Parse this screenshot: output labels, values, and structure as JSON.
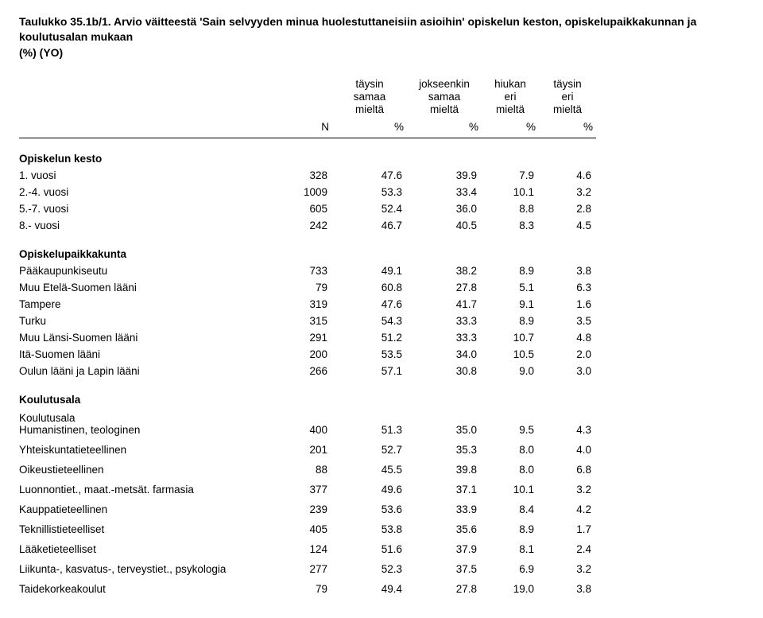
{
  "title_part1": "Taulukko 35.1b/1. Arvio väitteestä 'Sain selvyyden minua huolestuttaneisiin asioihin' opiskelun keston, opiskelupaikkakunnan ja koulutusalan mukaan",
  "title_part2": "(%) (YO)",
  "headers": {
    "c1": [
      "täysin",
      "samaa",
      "mieltä"
    ],
    "c2": [
      "jokseenkin",
      "samaa",
      "mieltä"
    ],
    "c3": [
      "hiukan",
      "eri",
      "mieltä"
    ],
    "c4": [
      "täysin",
      "eri",
      "mieltä"
    ],
    "n": "N",
    "pct": "%"
  },
  "sections": {
    "s1": {
      "label": "Opiskelun kesto",
      "rows": [
        {
          "label": "1. vuosi",
          "n": "328",
          "v": [
            "47.6",
            "39.9",
            "7.9",
            "4.6"
          ]
        },
        {
          "label": "2.-4. vuosi",
          "n": "1009",
          "v": [
            "53.3",
            "33.4",
            "10.1",
            "3.2"
          ]
        },
        {
          "label": "5.-7. vuosi",
          "n": "605",
          "v": [
            "52.4",
            "36.0",
            "8.8",
            "2.8"
          ]
        },
        {
          "label": "8.- vuosi",
          "n": "242",
          "v": [
            "46.7",
            "40.5",
            "8.3",
            "4.5"
          ]
        }
      ]
    },
    "s2": {
      "label": "Opiskelupaikkakunta",
      "rows": [
        {
          "label": "Pääkaupunkiseutu",
          "n": "733",
          "v": [
            "49.1",
            "38.2",
            "8.9",
            "3.8"
          ]
        },
        {
          "label": "Muu Etelä-Suomen lääni",
          "n": "79",
          "v": [
            "60.8",
            "27.8",
            "5.1",
            "6.3"
          ]
        },
        {
          "label": "Tampere",
          "n": "319",
          "v": [
            "47.6",
            "41.7",
            "9.1",
            "1.6"
          ]
        },
        {
          "label": "Turku",
          "n": "315",
          "v": [
            "54.3",
            "33.3",
            "8.9",
            "3.5"
          ]
        },
        {
          "label": "Muu Länsi-Suomen lääni",
          "n": "291",
          "v": [
            "51.2",
            "33.3",
            "10.7",
            "4.8"
          ]
        },
        {
          "label": "Itä-Suomen lääni",
          "n": "200",
          "v": [
            "53.5",
            "34.0",
            "10.5",
            "2.0"
          ]
        },
        {
          "label": "Oulun lääni ja Lapin lääni",
          "n": "266",
          "v": [
            "57.1",
            "30.8",
            "9.0",
            "3.0"
          ]
        }
      ]
    },
    "s3": {
      "label": "Koulutusala",
      "rows": [
        {
          "label": "Koulutusala",
          "sub": "Humanistinen, teologinen",
          "n": "400",
          "v": [
            "51.3",
            "35.0",
            "9.5",
            "4.3"
          ]
        },
        {
          "label": "Yhteiskuntatieteellinen",
          "n": "201",
          "v": [
            "52.7",
            "35.3",
            "8.0",
            "4.0"
          ]
        },
        {
          "label": "Oikeustieteellinen",
          "n": "88",
          "v": [
            "45.5",
            "39.8",
            "8.0",
            "6.8"
          ]
        },
        {
          "label": "Luonnontiet., maat.-metsät. farmasia",
          "n": "377",
          "v": [
            "49.6",
            "37.1",
            "10.1",
            "3.2"
          ]
        },
        {
          "label": "Kauppatieteellinen",
          "n": "239",
          "v": [
            "53.6",
            "33.9",
            "8.4",
            "4.2"
          ]
        },
        {
          "label": "Teknillistieteelliset",
          "n": "405",
          "v": [
            "53.8",
            "35.6",
            "8.9",
            "1.7"
          ]
        },
        {
          "label": "Lääketieteelliset",
          "n": "124",
          "v": [
            "51.6",
            "37.9",
            "8.1",
            "2.4"
          ]
        },
        {
          "label": "Liikunta-, kasvatus-, terveystiet., psykologia",
          "n": "277",
          "v": [
            "52.3",
            "37.5",
            "6.9",
            "3.2"
          ]
        },
        {
          "label": "Taidekorkeakoulut",
          "n": "79",
          "v": [
            "49.4",
            "27.8",
            "19.0",
            "3.8"
          ]
        }
      ]
    }
  }
}
